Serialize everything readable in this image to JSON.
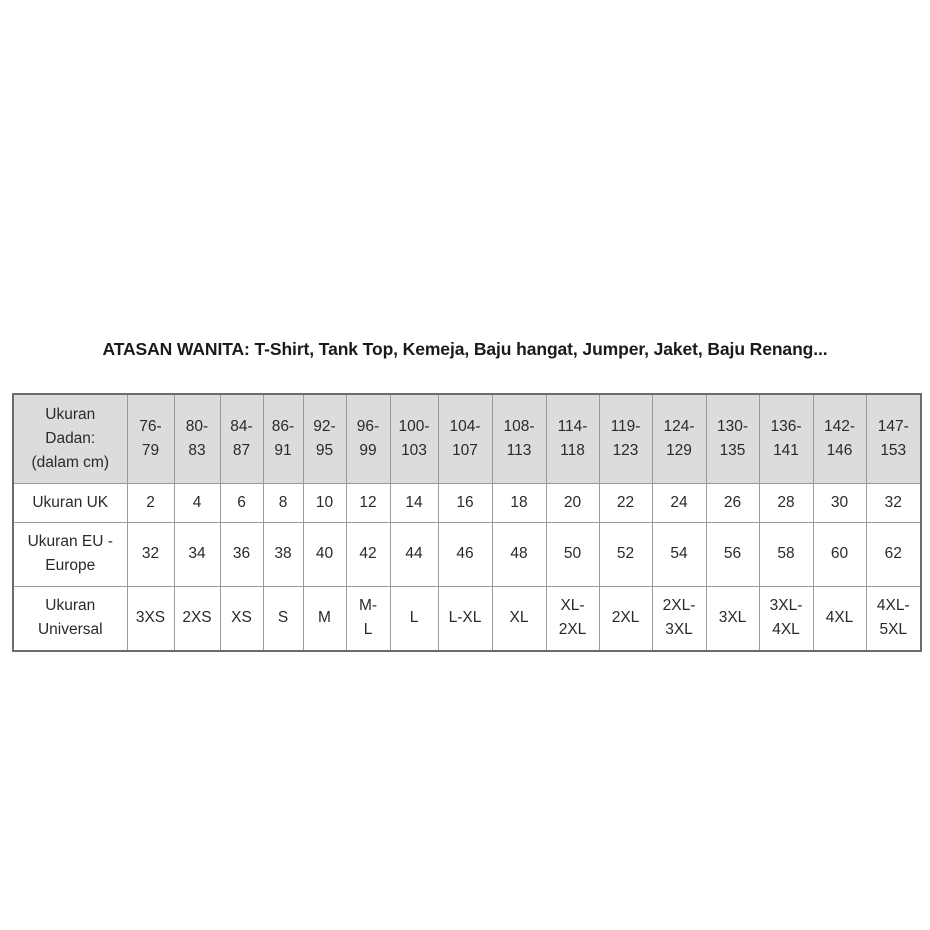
{
  "title": "ATASAN WANITA: T-Shirt, Tank Top, Kemeja, Baju hangat, Jumper, Jaket, Baju Renang...",
  "table": {
    "rows": [
      {
        "label": [
          "Ukuran",
          "Dadan:",
          "(dalam cm)"
        ],
        "cells": [
          [
            "76-",
            "79"
          ],
          [
            "80-",
            "83"
          ],
          [
            "84-",
            "87"
          ],
          [
            "86-",
            "91"
          ],
          [
            "92-",
            "95"
          ],
          [
            "96-",
            "99"
          ],
          [
            "100-",
            "103"
          ],
          [
            "104-",
            "107"
          ],
          [
            "108-",
            "113"
          ],
          [
            "114-",
            "118"
          ],
          [
            "119-",
            "123"
          ],
          [
            "124-",
            "129"
          ],
          [
            "130-",
            "135"
          ],
          [
            "136-",
            "141"
          ],
          [
            "142-",
            "146"
          ],
          [
            "147-",
            "153"
          ]
        ]
      },
      {
        "label": [
          "Ukuran UK"
        ],
        "cells": [
          [
            "2"
          ],
          [
            "4"
          ],
          [
            "6"
          ],
          [
            "8"
          ],
          [
            "10"
          ],
          [
            "12"
          ],
          [
            "14"
          ],
          [
            "16"
          ],
          [
            "18"
          ],
          [
            "20"
          ],
          [
            "22"
          ],
          [
            "24"
          ],
          [
            "26"
          ],
          [
            "28"
          ],
          [
            "30"
          ],
          [
            "32"
          ]
        ]
      },
      {
        "label": [
          "Ukuran EU -",
          "Europe"
        ],
        "cells": [
          [
            "32"
          ],
          [
            "34"
          ],
          [
            "36"
          ],
          [
            "38"
          ],
          [
            "40"
          ],
          [
            "42"
          ],
          [
            "44"
          ],
          [
            "46"
          ],
          [
            "48"
          ],
          [
            "50"
          ],
          [
            "52"
          ],
          [
            "54"
          ],
          [
            "56"
          ],
          [
            "58"
          ],
          [
            "60"
          ],
          [
            "62"
          ]
        ]
      },
      {
        "label": [
          "Ukuran",
          "Universal"
        ],
        "cells": [
          [
            "3XS"
          ],
          [
            "2XS"
          ],
          [
            "XS"
          ],
          [
            "S"
          ],
          [
            "M"
          ],
          [
            "M-",
            "L"
          ],
          [
            "L"
          ],
          [
            "L-XL"
          ],
          [
            "XL"
          ],
          [
            "XL-",
            "2XL"
          ],
          [
            "2XL"
          ],
          [
            "2XL-",
            "3XL"
          ],
          [
            "3XL"
          ],
          [
            "3XL-",
            "4XL"
          ],
          [
            "4XL"
          ],
          [
            "4XL-",
            "5XL"
          ]
        ]
      }
    ]
  },
  "colors": {
    "header_bg": "#dcdcdc",
    "border": "#6b6b6b"
  }
}
